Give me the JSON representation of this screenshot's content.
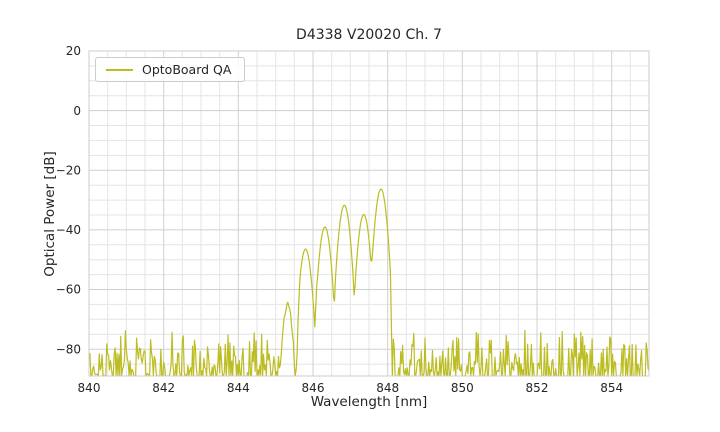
{
  "chart_data": {
    "type": "line",
    "title": "D4338 V20020 Ch. 7",
    "xlabel": "Wavelength [nm]",
    "ylabel": "Optical Power [dB]",
    "legend": [
      "OptoBoard QA"
    ],
    "legend_position": "upper left",
    "line_color": "#bcbd22",
    "xlim": [
      840,
      855
    ],
    "ylim": [
      -89,
      20
    ],
    "xticks": [
      840,
      842,
      844,
      846,
      848,
      850,
      852,
      854
    ],
    "yticks": [
      20,
      0,
      -20,
      -40,
      -60,
      -80
    ],
    "minor_grid_step": {
      "x": 0.5,
      "y": 5
    },
    "grid": true,
    "peaks": [
      {
        "wavelength_nm": 845.32,
        "power_db": -65.5,
        "note": "side mode"
      },
      {
        "wavelength_nm": 845.8,
        "power_db": -46.4
      },
      {
        "wavelength_nm": 846.32,
        "power_db": -39.0
      },
      {
        "wavelength_nm": 846.84,
        "power_db": -31.7
      },
      {
        "wavelength_nm": 847.36,
        "power_db": -34.8
      },
      {
        "wavelength_nm": 847.82,
        "power_db": -26.3
      }
    ],
    "signal_range_nm": [
      845.12,
      848.1
    ],
    "noise_floor": {
      "top_db": -71.5,
      "spread_db": 23,
      "clip_db": -89
    },
    "spectrum_model": {
      "mode_width_nm": 0.1,
      "side_mode_width_nm": 0.09,
      "flank_knee_db": 28,
      "flank_slope_db_per_nm": 700,
      "notch": {
        "center_nm": 845.56,
        "depth_db": 15,
        "width_nm": 0.045
      },
      "wiggle": {
        "threshold_db": -58,
        "amplitude_db": 1.3
      },
      "sample_step_nm": 0.025,
      "seed": 1337
    },
    "colors": {
      "grid_major": "#cfcfcf",
      "grid_minor": "#e4e4e4",
      "spine": "#cccccc",
      "text": "#262626"
    }
  }
}
